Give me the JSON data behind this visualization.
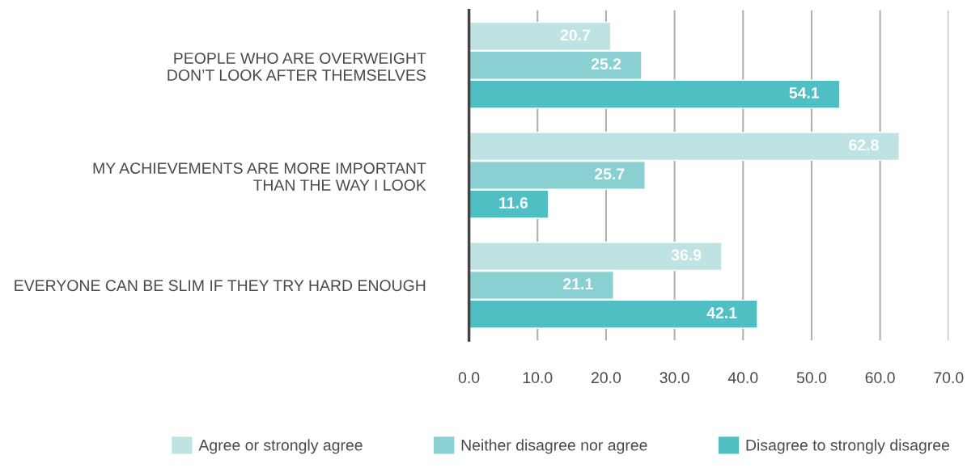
{
  "chart_data": {
    "type": "bar",
    "orientation": "horizontal",
    "categories": [
      "PEOPLE WHO ARE OVERWEIGHT\nDON’T LOOK AFTER THEMSELVES",
      "MY ACHIEVEMENTS ARE MORE IMPORTANT\nTHAN THE WAY I LOOK",
      "EVERYONE CAN BE SLIM IF THEY TRY HARD ENOUGH"
    ],
    "series": [
      {
        "name": "Agree or strongly agree",
        "color": "#bfe3e3",
        "values": [
          20.7,
          62.8,
          36.9
        ]
      },
      {
        "name": "Neither disagree nor agree",
        "color": "#8acfd2",
        "values": [
          25.2,
          25.7,
          21.1
        ]
      },
      {
        "name": "Disagree to strongly disagree",
        "color": "#50bfc4",
        "values": [
          54.1,
          11.6,
          42.1
        ]
      }
    ],
    "xlim": [
      0,
      70
    ],
    "xticks": [
      {
        "value": 0,
        "label": "0.0"
      },
      {
        "value": 10,
        "label": "10.0"
      },
      {
        "value": 20,
        "label": "20.0"
      },
      {
        "value": 30,
        "label": "30.0"
      },
      {
        "value": 40,
        "label": "40.0"
      },
      {
        "value": 50,
        "label": "50.0"
      },
      {
        "value": 60,
        "label": "60.0"
      },
      {
        "value": 70,
        "label": "70.0"
      }
    ],
    "grid": "x",
    "legend": "bottom",
    "data_labels": true
  }
}
